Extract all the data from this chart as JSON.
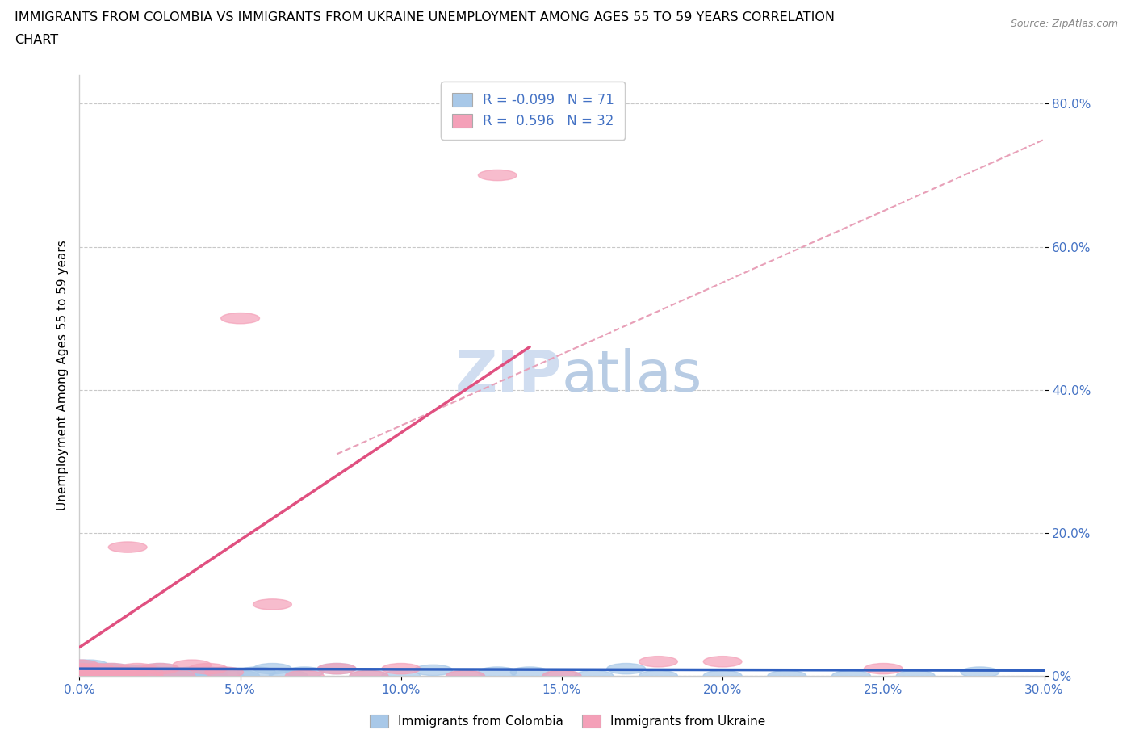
{
  "title_line1": "IMMIGRANTS FROM COLOMBIA VS IMMIGRANTS FROM UKRAINE UNEMPLOYMENT AMONG AGES 55 TO 59 YEARS CORRELATION",
  "title_line2": "CHART",
  "source_text": "Source: ZipAtlas.com",
  "ylabel": "Unemployment Among Ages 55 to 59 years",
  "xlim": [
    0.0,
    0.3
  ],
  "ylim": [
    0.0,
    0.84
  ],
  "xticks": [
    0.0,
    0.05,
    0.1,
    0.15,
    0.2,
    0.25,
    0.3
  ],
  "xtick_labels": [
    "0.0%",
    "5.0%",
    "10.0%",
    "15.0%",
    "20.0%",
    "25.0%",
    "30.0%"
  ],
  "yticks": [
    0.0,
    0.2,
    0.4,
    0.6,
    0.8
  ],
  "ytick_labels": [
    "0%",
    "20.0%",
    "40.0%",
    "60.0%",
    "80.0%"
  ],
  "colombia_color": "#a8c8e8",
  "ukraine_color": "#f4a0b8",
  "trend_colombia_color": "#3060c0",
  "trend_ukraine_solid_color": "#e05080",
  "trend_ukraine_dashed_color": "#e8a0b8",
  "grid_color": "#c8c8c8",
  "background_color": "#ffffff",
  "R_colombia": -0.099,
  "N_colombia": 71,
  "R_ukraine": 0.596,
  "N_ukraine": 32,
  "watermark_color": "#d0ddf0",
  "tick_color": "#4472c4",
  "colombia_x": [
    0.0,
    0.0,
    0.0,
    0.0,
    0.0,
    0.0,
    0.0,
    0.0,
    0.0,
    0.0,
    0.005,
    0.005,
    0.005,
    0.005,
    0.008,
    0.008,
    0.008,
    0.01,
    0.01,
    0.01,
    0.012,
    0.014,
    0.015,
    0.015,
    0.018,
    0.018,
    0.02,
    0.02,
    0.022,
    0.024,
    0.025,
    0.025,
    0.028,
    0.028,
    0.03,
    0.032,
    0.035,
    0.038,
    0.04,
    0.04,
    0.045,
    0.05,
    0.055,
    0.06,
    0.065,
    0.07,
    0.08,
    0.09,
    0.1,
    0.11,
    0.12,
    0.13,
    0.14,
    0.15,
    0.16,
    0.17,
    0.18,
    0.2,
    0.22,
    0.24,
    0.26,
    0.28,
    0.0,
    0.003,
    0.006,
    0.009,
    0.012,
    0.016,
    0.02,
    0.025,
    0.03
  ],
  "colombia_y": [
    0.0,
    0.0,
    0.0,
    0.0,
    0.0,
    0.005,
    0.008,
    0.01,
    0.012,
    0.015,
    0.0,
    0.0,
    0.005,
    0.008,
    0.0,
    0.003,
    0.01,
    0.0,
    0.005,
    0.01,
    0.0,
    0.0,
    0.005,
    0.008,
    0.0,
    0.005,
    0.0,
    0.008,
    0.0,
    0.005,
    0.0,
    0.01,
    0.0,
    0.005,
    0.0,
    0.0,
    0.005,
    0.0,
    0.0,
    0.005,
    0.0,
    0.0,
    0.005,
    0.01,
    0.0,
    0.005,
    0.01,
    0.0,
    0.0,
    0.008,
    0.0,
    0.005,
    0.005,
    0.0,
    0.0,
    0.01,
    0.0,
    0.0,
    0.0,
    0.0,
    0.0,
    0.005,
    0.0,
    0.015,
    0.008,
    0.0,
    0.005,
    0.0,
    0.005,
    0.0,
    0.0
  ],
  "ukraine_x": [
    0.0,
    0.0,
    0.0,
    0.0,
    0.005,
    0.005,
    0.008,
    0.01,
    0.01,
    0.012,
    0.015,
    0.015,
    0.018,
    0.02,
    0.02,
    0.025,
    0.03,
    0.035,
    0.04,
    0.045,
    0.05,
    0.06,
    0.07,
    0.08,
    0.09,
    0.1,
    0.12,
    0.13,
    0.15,
    0.18,
    0.2,
    0.25
  ],
  "ukraine_y": [
    0.0,
    0.01,
    0.015,
    0.005,
    0.0,
    0.01,
    0.0,
    0.01,
    0.0,
    0.005,
    0.18,
    0.0,
    0.01,
    0.0,
    0.005,
    0.01,
    0.0,
    0.015,
    0.01,
    0.005,
    0.5,
    0.1,
    0.0,
    0.01,
    0.0,
    0.01,
    0.0,
    0.7,
    0.0,
    0.02,
    0.02,
    0.01
  ]
}
